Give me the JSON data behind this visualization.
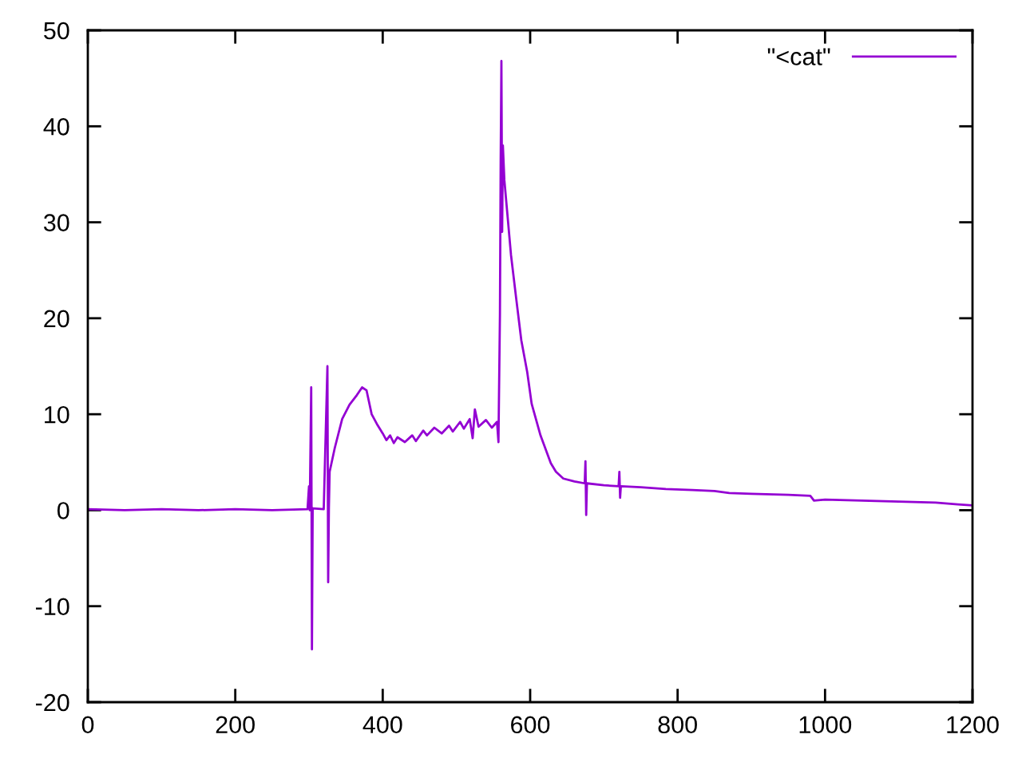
{
  "chart_data": {
    "type": "line",
    "legend": "top right",
    "grid": false,
    "marker": "none",
    "line_style": "solid",
    "xlim": [
      0,
      1200
    ],
    "xticks": [
      0,
      200,
      400,
      600,
      800,
      1000,
      1200
    ],
    "ylim": [
      -20,
      50
    ],
    "yticks": [
      -20,
      -10,
      0,
      10,
      20,
      30,
      40,
      50
    ],
    "series": [
      {
        "name": "\"<cat\"",
        "color": "#9400d3",
        "x": [
          0,
          50,
          100,
          150,
          200,
          250,
          298,
          300,
          301,
          303,
          304,
          305,
          320,
          325,
          326,
          327,
          328,
          335,
          345,
          355,
          365,
          372,
          378,
          385,
          392,
          400,
          405,
          410,
          415,
          420,
          430,
          440,
          445,
          455,
          460,
          470,
          480,
          490,
          495,
          505,
          510,
          518,
          522,
          525,
          530,
          540,
          548,
          555,
          557,
          559,
          560,
          561,
          562,
          563,
          565,
          574,
          581,
          588,
          596,
          602,
          614,
          628,
          635,
          645,
          660,
          674,
          675,
          676,
          677,
          700,
          720,
          721,
          722,
          723,
          750,
          784,
          820,
          850,
          870,
          900,
          950,
          980,
          985,
          1000,
          1050,
          1100,
          1150,
          1180,
          1200
        ],
        "values": [
          0.1,
          0.0,
          0.1,
          0.0,
          0.1,
          0.0,
          0.1,
          2.5,
          0.0,
          12.8,
          -14.5,
          0.2,
          0.1,
          15.0,
          -7.5,
          0.3,
          4.0,
          6.5,
          9.5,
          11.0,
          12.0,
          12.8,
          12.5,
          10.0,
          9.0,
          8.0,
          7.3,
          7.8,
          7.0,
          7.6,
          7.1,
          7.8,
          7.2,
          8.3,
          7.8,
          8.6,
          8.0,
          8.8,
          8.2,
          9.2,
          8.5,
          9.5,
          7.5,
          10.5,
          8.7,
          9.4,
          8.6,
          9.2,
          7.1,
          20.4,
          36.5,
          46.8,
          29.0,
          38.0,
          34.4,
          26.6,
          22.1,
          17.7,
          14.4,
          11.1,
          7.8,
          4.9,
          4.0,
          3.3,
          3.0,
          2.8,
          5.1,
          -0.5,
          2.8,
          2.6,
          2.5,
          4.0,
          1.3,
          2.5,
          2.4,
          2.2,
          2.1,
          2.0,
          1.8,
          1.7,
          1.6,
          1.5,
          1.0,
          1.1,
          1.0,
          0.9,
          0.8,
          0.6,
          0.5
        ]
      }
    ]
  }
}
